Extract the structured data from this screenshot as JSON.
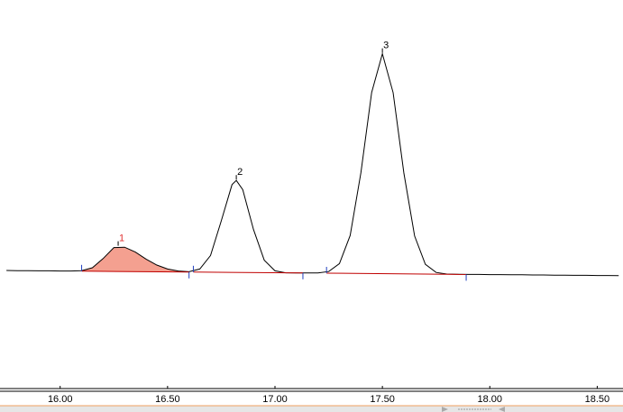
{
  "chart_data": {
    "type": "line",
    "x": [
      15.75,
      15.8,
      15.85,
      15.9,
      15.95,
      16.0,
      16.05,
      16.1,
      16.15,
      16.2,
      16.25,
      16.3,
      16.35,
      16.4,
      16.45,
      16.5,
      16.55,
      16.6,
      16.65,
      16.7,
      16.75,
      16.8,
      16.82,
      16.85,
      16.9,
      16.95,
      17.0,
      17.05,
      17.1,
      17.15,
      17.2,
      17.25,
      17.3,
      17.35,
      17.4,
      17.45,
      17.5,
      17.55,
      17.6,
      17.65,
      17.7,
      17.75,
      17.8,
      17.85,
      17.9,
      17.95,
      18.0,
      18.05,
      18.1,
      18.15,
      18.2,
      18.25,
      18.3,
      18.35,
      18.4,
      18.45,
      18.5,
      18.55,
      18.6
    ],
    "values": [
      0.0,
      -0.1,
      -0.1,
      -0.2,
      -0.2,
      -0.3,
      -0.3,
      -0.1,
      1.5,
      6.6,
      12.7,
      12.9,
      10.2,
      6.3,
      3.0,
      0.8,
      -0.3,
      -0.7,
      0.8,
      8.3,
      27.5,
      47.6,
      49.9,
      44.8,
      22.7,
      5.7,
      -0.2,
      -1.3,
      -1.4,
      -1.4,
      -1.4,
      -0.6,
      3.8,
      19.4,
      54.2,
      98.7,
      120.2,
      98.6,
      54.0,
      19.1,
      3.4,
      -1.1,
      -2.0,
      -2.1,
      -2.2,
      -2.2,
      -2.3,
      -2.3,
      -2.4,
      -2.4,
      -2.5,
      -2.5,
      -2.6,
      -2.6,
      -2.7,
      -2.7,
      -2.8,
      -2.8,
      -2.9
    ],
    "color": "#000000",
    "xlim": [
      15.72,
      18.62
    ],
    "ylim": [
      -65,
      150
    ],
    "xticks": [
      {
        "value": 16,
        "label": "16.00"
      },
      {
        "value": 16.5,
        "label": "16.50"
      },
      {
        "value": 17,
        "label": "17.00"
      },
      {
        "value": 17.5,
        "label": "17.50"
      },
      {
        "value": 18,
        "label": "18.00"
      },
      {
        "value": 18.5,
        "label": "18.50"
      }
    ],
    "baseline_color": "#c00000",
    "marker_color": "#1f3fbf",
    "peaks": [
      {
        "label": "1",
        "apex_x": 16.27,
        "apex_y": 13.2,
        "start": 16.1,
        "end": 16.6,
        "baseline": [
          -0.4,
          -0.9
        ],
        "color": "#e03030",
        "fill": "#f4a090"
      },
      {
        "label": "2",
        "apex_x": 16.82,
        "apex_y": 49.9,
        "start": 16.62,
        "end": 17.13,
        "baseline": [
          -0.9,
          -1.4
        ],
        "color": "#000000"
      },
      {
        "label": "3",
        "apex_x": 17.5,
        "apex_y": 120.2,
        "start": 17.24,
        "end": 17.89,
        "baseline": [
          -1.5,
          -2.2
        ],
        "color": "#000000"
      }
    ]
  }
}
